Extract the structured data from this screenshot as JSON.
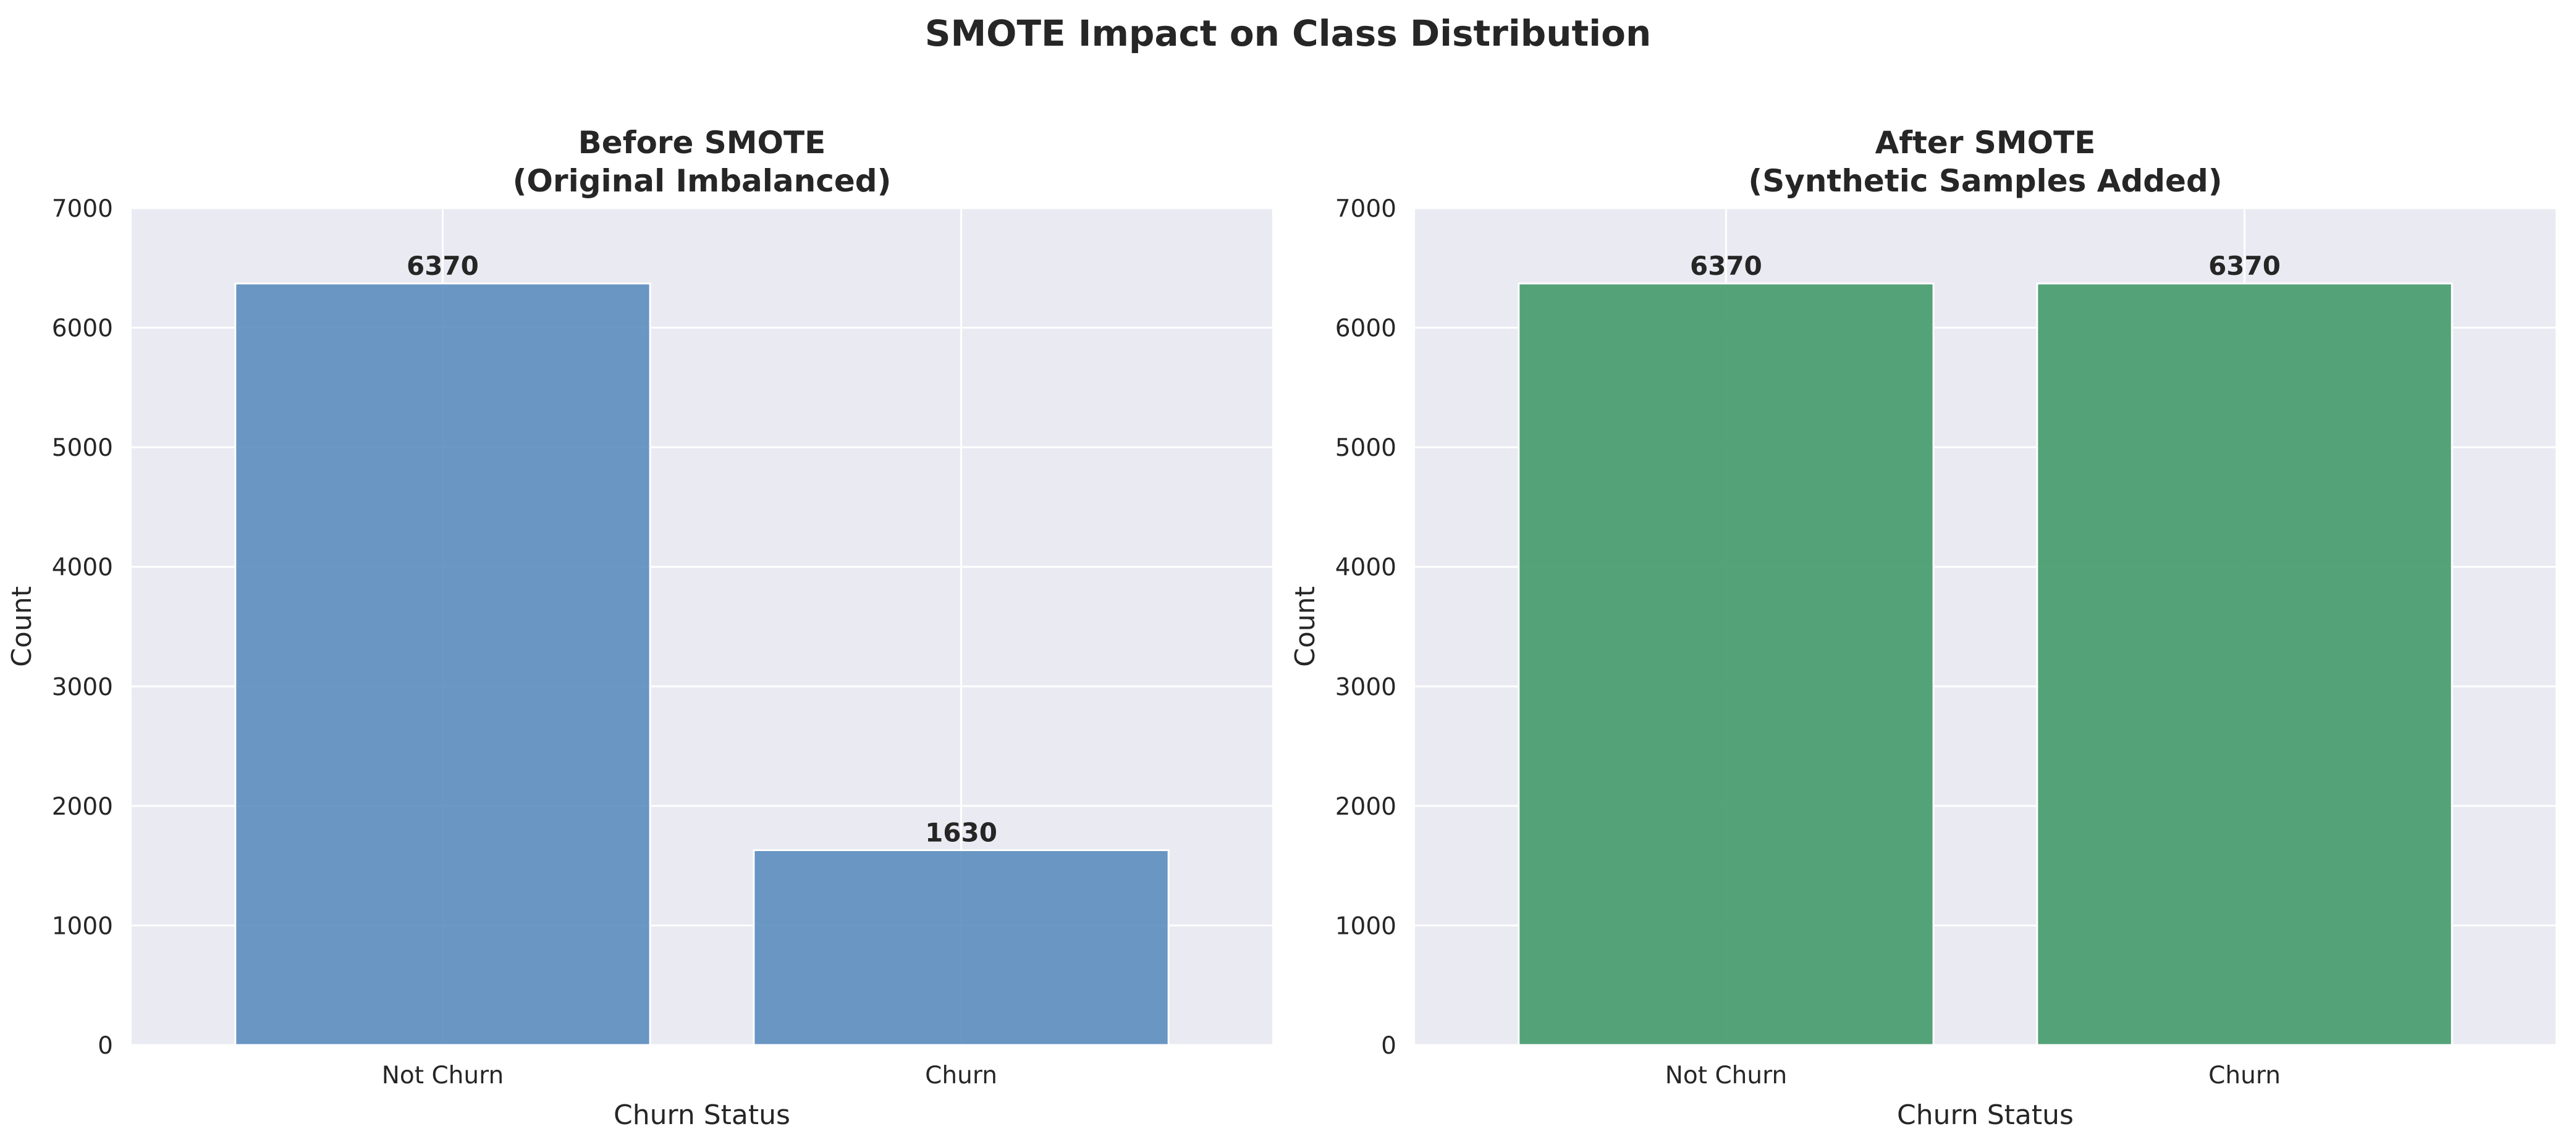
{
  "figure": {
    "title": "SMOTE Impact on Class Distribution"
  },
  "chart_data": [
    {
      "type": "bar",
      "title": "Before SMOTE",
      "subtitle": "(Original Imbalanced)",
      "xlabel": "Churn Status",
      "ylabel": "Count",
      "categories": [
        "Not Churn",
        "Churn"
      ],
      "values": [
        6370,
        1630
      ],
      "data_labels": [
        "6370",
        "1630"
      ],
      "ylim": [
        0,
        7000
      ],
      "yticks": [
        0,
        1000,
        2000,
        3000,
        4000,
        5000,
        6000,
        7000
      ],
      "grid": true,
      "bar_color": "#5B8DBE",
      "background_color": "#EAEAF2"
    },
    {
      "type": "bar",
      "title": "After SMOTE",
      "subtitle": "(Synthetic Samples Added)",
      "xlabel": "Churn Status",
      "ylabel": "Count",
      "categories": [
        "Not Churn",
        "Churn"
      ],
      "values": [
        6370,
        6370
      ],
      "data_labels": [
        "6370",
        "6370"
      ],
      "ylim": [
        0,
        7000
      ],
      "yticks": [
        0,
        1000,
        2000,
        3000,
        4000,
        5000,
        6000,
        7000
      ],
      "grid": true,
      "bar_color": "#439A6A",
      "background_color": "#EAEAF2"
    }
  ]
}
